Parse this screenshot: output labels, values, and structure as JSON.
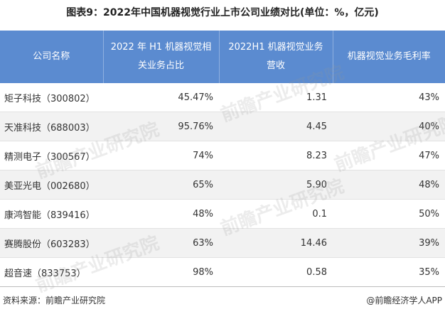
{
  "title": "图表9：2022年中国机器视觉行业上市公司业绩对比(单位：%，亿元)",
  "table": {
    "header": [
      "公司名称",
      "2022 年 H1 机器视觉相关业务占比",
      "2022H1 机器视觉业务营收",
      "机器视觉业务毛利率"
    ],
    "rows": [
      [
        "矩子科技（300802）",
        "45.47%",
        "1.31",
        "43%"
      ],
      [
        "天准科技（688003）",
        "95.76%",
        "4.45",
        "40%"
      ],
      [
        "精测电子（300567）",
        "74%",
        "8.23",
        "47%"
      ],
      [
        "美亚光电（002680）",
        "65%",
        "5.90",
        "48%"
      ],
      [
        "康鸿智能（839416）",
        "48%",
        "0.1",
        "50%"
      ],
      [
        "赛腾股份（603283）",
        "63%",
        "14.46",
        "39%"
      ],
      [
        "超音速（833753）",
        "98%",
        "0.58",
        "35%"
      ]
    ]
  },
  "watermark": "前瞻产业研究院",
  "footer": {
    "source": "资料来源：前瞻产业研究院",
    "brand": "@前瞻经济学人APP"
  }
}
